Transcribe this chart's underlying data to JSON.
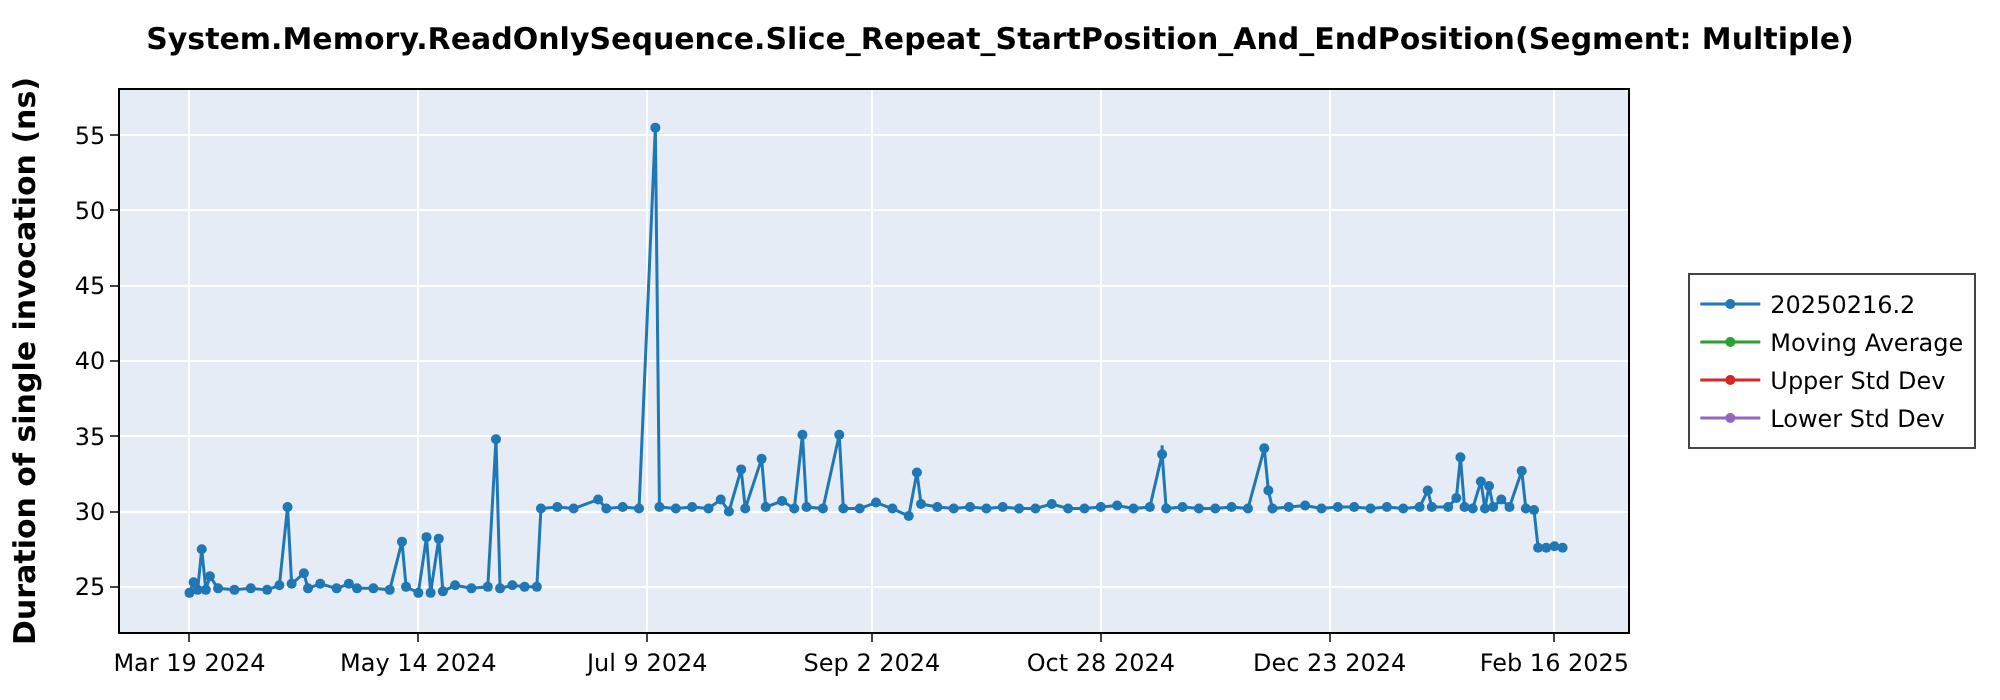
{
  "chart_data": {
    "type": "line",
    "title": "System.Memory.ReadOnlySequence.Slice_Repeat_StartPosition_And_EndPosition(Segment: Multiple)",
    "ylabel": "Duration of single invocation (ns)",
    "x": [
      "2024-03-19",
      "2024-03-20",
      "2024-03-21",
      "2024-03-22",
      "2024-03-23",
      "2024-03-24",
      "2024-03-26",
      "2024-03-30",
      "2024-04-03",
      "2024-04-07",
      "2024-04-10",
      "2024-04-12",
      "2024-04-13",
      "2024-04-16",
      "2024-04-17",
      "2024-04-20",
      "2024-04-24",
      "2024-04-27",
      "2024-04-29",
      "2024-05-03",
      "2024-05-07",
      "2024-05-10",
      "2024-05-11",
      "2024-05-14",
      "2024-05-16",
      "2024-05-17",
      "2024-05-19",
      "2024-05-20",
      "2024-05-23",
      "2024-05-27",
      "2024-05-31",
      "2024-06-02",
      "2024-06-03",
      "2024-06-06",
      "2024-06-09",
      "2024-06-12",
      "2024-06-13",
      "2024-06-17",
      "2024-06-21",
      "2024-06-27",
      "2024-06-29",
      "2024-07-03",
      "2024-07-07",
      "2024-07-11",
      "2024-07-12",
      "2024-07-16",
      "2024-07-20",
      "2024-07-24",
      "2024-07-27",
      "2024-07-29",
      "2024-08-01",
      "2024-08-02",
      "2024-08-06",
      "2024-08-07",
      "2024-08-11",
      "2024-08-14",
      "2024-08-16",
      "2024-08-17",
      "2024-08-21",
      "2024-08-25",
      "2024-08-26",
      "2024-08-30",
      "2024-09-03",
      "2024-09-07",
      "2024-09-11",
      "2024-09-13",
      "2024-09-14",
      "2024-09-18",
      "2024-09-22",
      "2024-09-26",
      "2024-09-30",
      "2024-10-04",
      "2024-10-08",
      "2024-10-12",
      "2024-10-16",
      "2024-10-20",
      "2024-10-24",
      "2024-10-28",
      "2024-11-01",
      "2024-11-05",
      "2024-11-09",
      "2024-11-12",
      "2024-11-13",
      "2024-11-17",
      "2024-11-21",
      "2024-11-25",
      "2024-11-29",
      "2024-12-03",
      "2024-12-07",
      "2024-12-08",
      "2024-12-09",
      "2024-12-13",
      "2024-12-17",
      "2024-12-21",
      "2024-12-25",
      "2024-12-29",
      "2025-01-02",
      "2025-01-06",
      "2025-01-10",
      "2025-01-14",
      "2025-01-16",
      "2025-01-17",
      "2025-01-21",
      "2025-01-23",
      "2025-01-24",
      "2025-01-25",
      "2025-01-27",
      "2025-01-29",
      "2025-01-30",
      "2025-01-31",
      "2025-02-01",
      "2025-02-03",
      "2025-02-05",
      "2025-02-08",
      "2025-02-09",
      "2025-02-11",
      "2025-02-12",
      "2025-02-14",
      "2025-02-16",
      "2025-02-18"
    ],
    "series": [
      {
        "name": "20250216.2",
        "color": "#1f77b4",
        "values": [
          24.6,
          25.3,
          24.8,
          27.5,
          24.8,
          25.7,
          24.9,
          24.8,
          24.9,
          24.8,
          25.1,
          30.3,
          25.2,
          25.9,
          24.9,
          25.2,
          24.9,
          25.2,
          24.9,
          24.9,
          24.8,
          28.0,
          25.0,
          24.6,
          28.3,
          24.6,
          28.2,
          24.7,
          25.1,
          24.9,
          25.0,
          34.8,
          24.9,
          25.1,
          25.0,
          25.0,
          30.2,
          30.3,
          30.2,
          30.8,
          30.2,
          30.3,
          30.2,
          55.5,
          30.3,
          30.2,
          30.3,
          30.2,
          30.8,
          30.0,
          32.8,
          30.2,
          33.5,
          30.3,
          30.7,
          30.2,
          35.1,
          30.3,
          30.2,
          35.1,
          30.2,
          30.2,
          30.6,
          30.2,
          29.7,
          32.6,
          30.5,
          30.3,
          30.2,
          30.3,
          30.2,
          30.3,
          30.2,
          30.2,
          30.5,
          30.2,
          30.2,
          30.3,
          30.4,
          30.2,
          30.3,
          33.8,
          30.2,
          30.3,
          30.2,
          30.2,
          30.3,
          30.2,
          34.2,
          31.4,
          30.2,
          30.3,
          30.4,
          30.2,
          30.3,
          30.3,
          30.2,
          30.3,
          30.2,
          30.3,
          31.4,
          30.3,
          30.3,
          30.9,
          33.6,
          30.3,
          30.2,
          32.0,
          30.2,
          31.7,
          30.3,
          30.8,
          30.3,
          32.7,
          30.2,
          30.1,
          27.6,
          27.6,
          27.7,
          27.6
        ],
        "errors": [
          null,
          null,
          null,
          null,
          null,
          null,
          null,
          null,
          null,
          null,
          null,
          null,
          null,
          null,
          null,
          null,
          null,
          null,
          null,
          null,
          null,
          null,
          null,
          null,
          null,
          null,
          null,
          null,
          null,
          null,
          null,
          null,
          null,
          null,
          null,
          null,
          null,
          null,
          null,
          null,
          null,
          null,
          null,
          null,
          null,
          null,
          null,
          null,
          null,
          null,
          null,
          null,
          null,
          null,
          null,
          null,
          null,
          null,
          null,
          null,
          null,
          null,
          null,
          null,
          null,
          null,
          null,
          null,
          null,
          null,
          null,
          null,
          null,
          null,
          null,
          null,
          null,
          null,
          null,
          null,
          null,
          0.6,
          null,
          null,
          null,
          null,
          null,
          null,
          null,
          null,
          null,
          null,
          null,
          null,
          null,
          null,
          null,
          null,
          null,
          null,
          null,
          null,
          null,
          null,
          null,
          null,
          null,
          null,
          null,
          null,
          null,
          null,
          null,
          null,
          null,
          null,
          null,
          null,
          null,
          null
        ]
      },
      {
        "name": "Moving Average",
        "color": "#2ca02c",
        "values": [
          null,
          null,
          null,
          null,
          null,
          null,
          null,
          null,
          null,
          null,
          null,
          null,
          null,
          null,
          null,
          null,
          null,
          null,
          null,
          null,
          null,
          null,
          null,
          null,
          null,
          null,
          null,
          null,
          null,
          null,
          null,
          null,
          null,
          null,
          null,
          null,
          null,
          null,
          null,
          null,
          null,
          null,
          null,
          null,
          null,
          null,
          null,
          null,
          null,
          null,
          null,
          null,
          null,
          null,
          null,
          null,
          null,
          null,
          null,
          null,
          null,
          null,
          null,
          null,
          null,
          null,
          null,
          null,
          null,
          null,
          null,
          null,
          null,
          null,
          null,
          null,
          null,
          null,
          null,
          null,
          null,
          null,
          null,
          null,
          null,
          null,
          null,
          null,
          null,
          null,
          null,
          null,
          null,
          null,
          null,
          null,
          null,
          null,
          null,
          null,
          null,
          null,
          null,
          null,
          null,
          null,
          null,
          null,
          null,
          null,
          null,
          null,
          null,
          null,
          null,
          null,
          null,
          null,
          null,
          null
        ]
      },
      {
        "name": "Upper Std Dev",
        "color": "#d62728",
        "values": [
          null,
          null,
          null,
          null,
          null,
          null,
          null,
          null,
          null,
          null,
          null,
          null,
          null,
          null,
          null,
          null,
          null,
          null,
          null,
          null,
          null,
          null,
          null,
          null,
          null,
          null,
          null,
          null,
          null,
          null,
          null,
          null,
          null,
          null,
          null,
          null,
          null,
          null,
          null,
          null,
          null,
          null,
          null,
          null,
          null,
          null,
          null,
          null,
          null,
          null,
          null,
          null,
          null,
          null,
          null,
          null,
          null,
          null,
          null,
          null,
          null,
          null,
          null,
          null,
          null,
          null,
          null,
          null,
          null,
          null,
          null,
          null,
          null,
          null,
          null,
          null,
          null,
          null,
          null,
          null,
          null,
          null,
          null,
          null,
          null,
          null,
          null,
          null,
          null,
          null,
          null,
          null,
          null,
          null,
          null,
          null,
          null,
          null,
          null,
          null,
          null,
          null,
          null,
          null,
          null,
          null,
          null,
          null,
          null,
          null,
          null,
          null,
          null,
          null,
          null,
          null,
          null,
          null,
          null,
          null
        ]
      },
      {
        "name": "Lower Std Dev",
        "color": "#9467bd",
        "values": [
          null,
          null,
          null,
          null,
          null,
          null,
          null,
          null,
          null,
          null,
          null,
          null,
          null,
          null,
          null,
          null,
          null,
          null,
          null,
          null,
          null,
          null,
          null,
          null,
          null,
          null,
          null,
          null,
          null,
          null,
          null,
          null,
          null,
          null,
          null,
          null,
          null,
          null,
          null,
          null,
          null,
          null,
          null,
          null,
          null,
          null,
          null,
          null,
          null,
          null,
          null,
          null,
          null,
          null,
          null,
          null,
          null,
          null,
          null,
          null,
          null,
          null,
          null,
          null,
          null,
          null,
          null,
          null,
          null,
          null,
          null,
          null,
          null,
          null,
          null,
          null,
          null,
          null,
          null,
          null,
          null,
          null,
          null,
          null,
          null,
          null,
          null,
          null,
          null,
          null,
          null,
          null,
          null,
          null,
          null,
          null,
          null,
          null,
          null,
          null,
          null,
          null,
          null,
          null,
          null,
          null,
          null,
          null,
          null,
          null,
          null,
          null,
          null,
          null,
          null,
          null,
          null,
          null,
          null,
          null
        ]
      }
    ],
    "xlim": [
      "2024-03-02",
      "2025-03-06"
    ],
    "xticks": [
      {
        "value": "2024-03-19",
        "label": "Mar 19 2024"
      },
      {
        "value": "2024-05-14",
        "label": "May 14 2024"
      },
      {
        "value": "2024-07-09",
        "label": "Jul 9 2024"
      },
      {
        "value": "2024-09-02",
        "label": "Sep 2 2024"
      },
      {
        "value": "2024-10-28",
        "label": "Oct 28 2024"
      },
      {
        "value": "2024-12-23",
        "label": "Dec 23 2024"
      },
      {
        "value": "2025-02-16",
        "label": "Feb 16 2025"
      }
    ],
    "ylim": [
      22,
      58
    ],
    "yticks": [
      25,
      30,
      35,
      40,
      45,
      50,
      55
    ],
    "grid": true,
    "legend": "right",
    "marker": "circle",
    "line_style": "solid"
  }
}
